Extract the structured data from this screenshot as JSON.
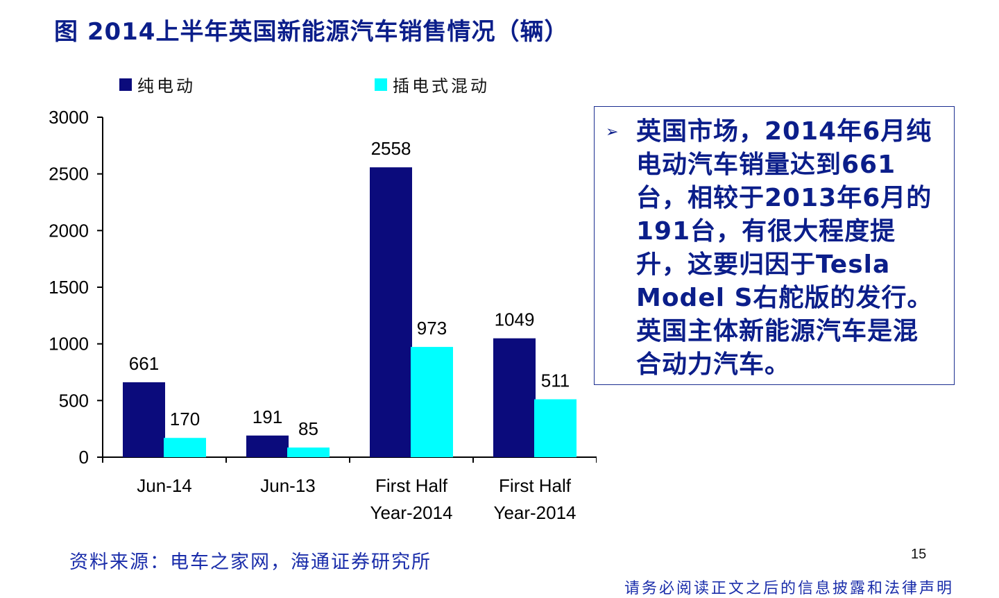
{
  "title": "图 2014上半年英国新能源汽车销售情况（辆）",
  "legend": {
    "bev_label": "纯电动",
    "phev_label": "插电式混动"
  },
  "colors": {
    "bev": "#0b0b7c",
    "phev": "#00ffff",
    "title": "#0b1e8a",
    "accent": "#1a2d8f"
  },
  "chart_data": {
    "type": "bar",
    "categories": [
      [
        "Jun-14"
      ],
      [
        "Jun-13"
      ],
      [
        "First Half",
        "Year-2014"
      ],
      [
        "First Half",
        "Year-2014"
      ]
    ],
    "series": [
      {
        "name": "纯电动",
        "values": [
          661,
          191,
          2558,
          1049
        ]
      },
      {
        "name": "插电式混动",
        "values": [
          170,
          85,
          973,
          511
        ]
      }
    ],
    "ylim": [
      0,
      3000
    ],
    "yticks": [
      0,
      500,
      1000,
      1500,
      2000,
      2500,
      3000
    ],
    "grid": false,
    "legend_position": "top"
  },
  "callout": {
    "bullet": "➢",
    "lines": [
      "英国市场，2014年6月纯",
      "电动汽车销量达到661",
      "台，相较于2013年6月的",
      "191台，有很大程度提",
      "升，这要归因于Tesla",
      "Model S右舵版的发行。",
      "英国主体新能源汽车是混",
      "合动力汽车。"
    ]
  },
  "source": "资料来源：电车之家网，海通证券研究所",
  "page_number": "15",
  "footer_fragment": "请务必阅读正文之后的信息披露和法律声明"
}
